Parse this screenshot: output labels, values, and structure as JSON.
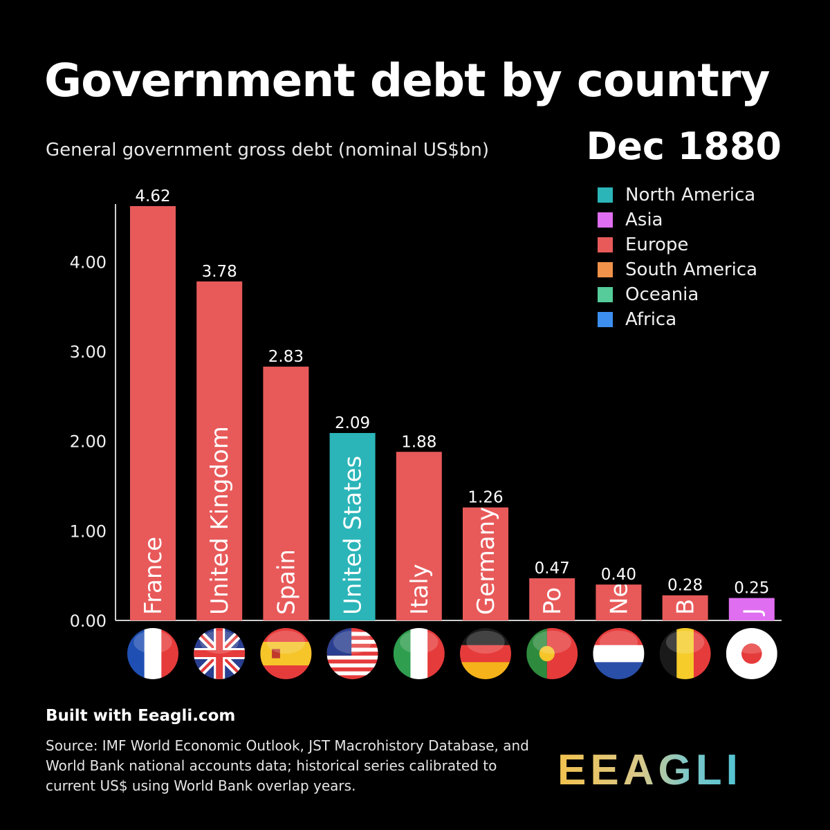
{
  "header": {
    "title": "Government debt by country",
    "subtitle": "General government gross debt (nominal US$bn)",
    "date": "Dec 1880"
  },
  "legend": [
    {
      "label": "North America",
      "color": "#2bb5b8"
    },
    {
      "label": "Asia",
      "color": "#e06ef0"
    },
    {
      "label": "Europe",
      "color": "#e85a5a"
    },
    {
      "label": "South America",
      "color": "#f0924a"
    },
    {
      "label": "Oceania",
      "color": "#55cc99"
    },
    {
      "label": "Africa",
      "color": "#3d8fef"
    }
  ],
  "chart_data": {
    "type": "bar",
    "title": "Government debt by country",
    "subtitle": "General government gross debt (nominal US$bn)",
    "period": "Dec 1880",
    "ylim": [
      0,
      4.62
    ],
    "yticks": [
      "0.00",
      "1.00",
      "2.00",
      "3.00",
      "4.00"
    ],
    "bars": [
      {
        "country": "France",
        "label": "France",
        "value": 4.62,
        "value_label": "4.62",
        "region": "Europe",
        "flag": "france-flag-icon"
      },
      {
        "country": "United Kingdom",
        "label": "United Kingdom",
        "value": 3.78,
        "value_label": "3.78",
        "region": "Europe",
        "flag": "uk-flag-icon"
      },
      {
        "country": "Spain",
        "label": "Spain",
        "value": 2.83,
        "value_label": "2.83",
        "region": "Europe",
        "flag": "spain-flag-icon"
      },
      {
        "country": "United States",
        "label": "United States",
        "value": 2.09,
        "value_label": "2.09",
        "region": "North America",
        "flag": "usa-flag-icon"
      },
      {
        "country": "Italy",
        "label": "Italy",
        "value": 1.88,
        "value_label": "1.88",
        "region": "Europe",
        "flag": "italy-flag-icon"
      },
      {
        "country": "Germany",
        "label": "Germany",
        "value": 1.26,
        "value_label": "1.26",
        "region": "Europe",
        "flag": "germany-flag-icon"
      },
      {
        "country": "Portugal",
        "label": "Po",
        "value": 0.47,
        "value_label": "0.47",
        "region": "Europe",
        "flag": "portugal-flag-icon"
      },
      {
        "country": "Netherlands",
        "label": "Ne",
        "value": 0.4,
        "value_label": "0.40",
        "region": "Europe",
        "flag": "netherlands-flag-icon"
      },
      {
        "country": "Belgium",
        "label": "B",
        "value": 0.28,
        "value_label": "0.28",
        "region": "Europe",
        "flag": "belgium-flag-icon"
      },
      {
        "country": "Japan",
        "label": "J",
        "value": 0.25,
        "value_label": "0.25",
        "region": "Asia",
        "flag": "japan-flag-icon"
      }
    ]
  },
  "footer": {
    "built_with": "Built with Eeagli.com",
    "source": "Source: IMF World Economic Outlook, JST Macrohistory Database, and World Bank national accounts data; historical series calibrated to current US$ using World Bank overlap years.",
    "logo_text": "EEAGLI"
  }
}
